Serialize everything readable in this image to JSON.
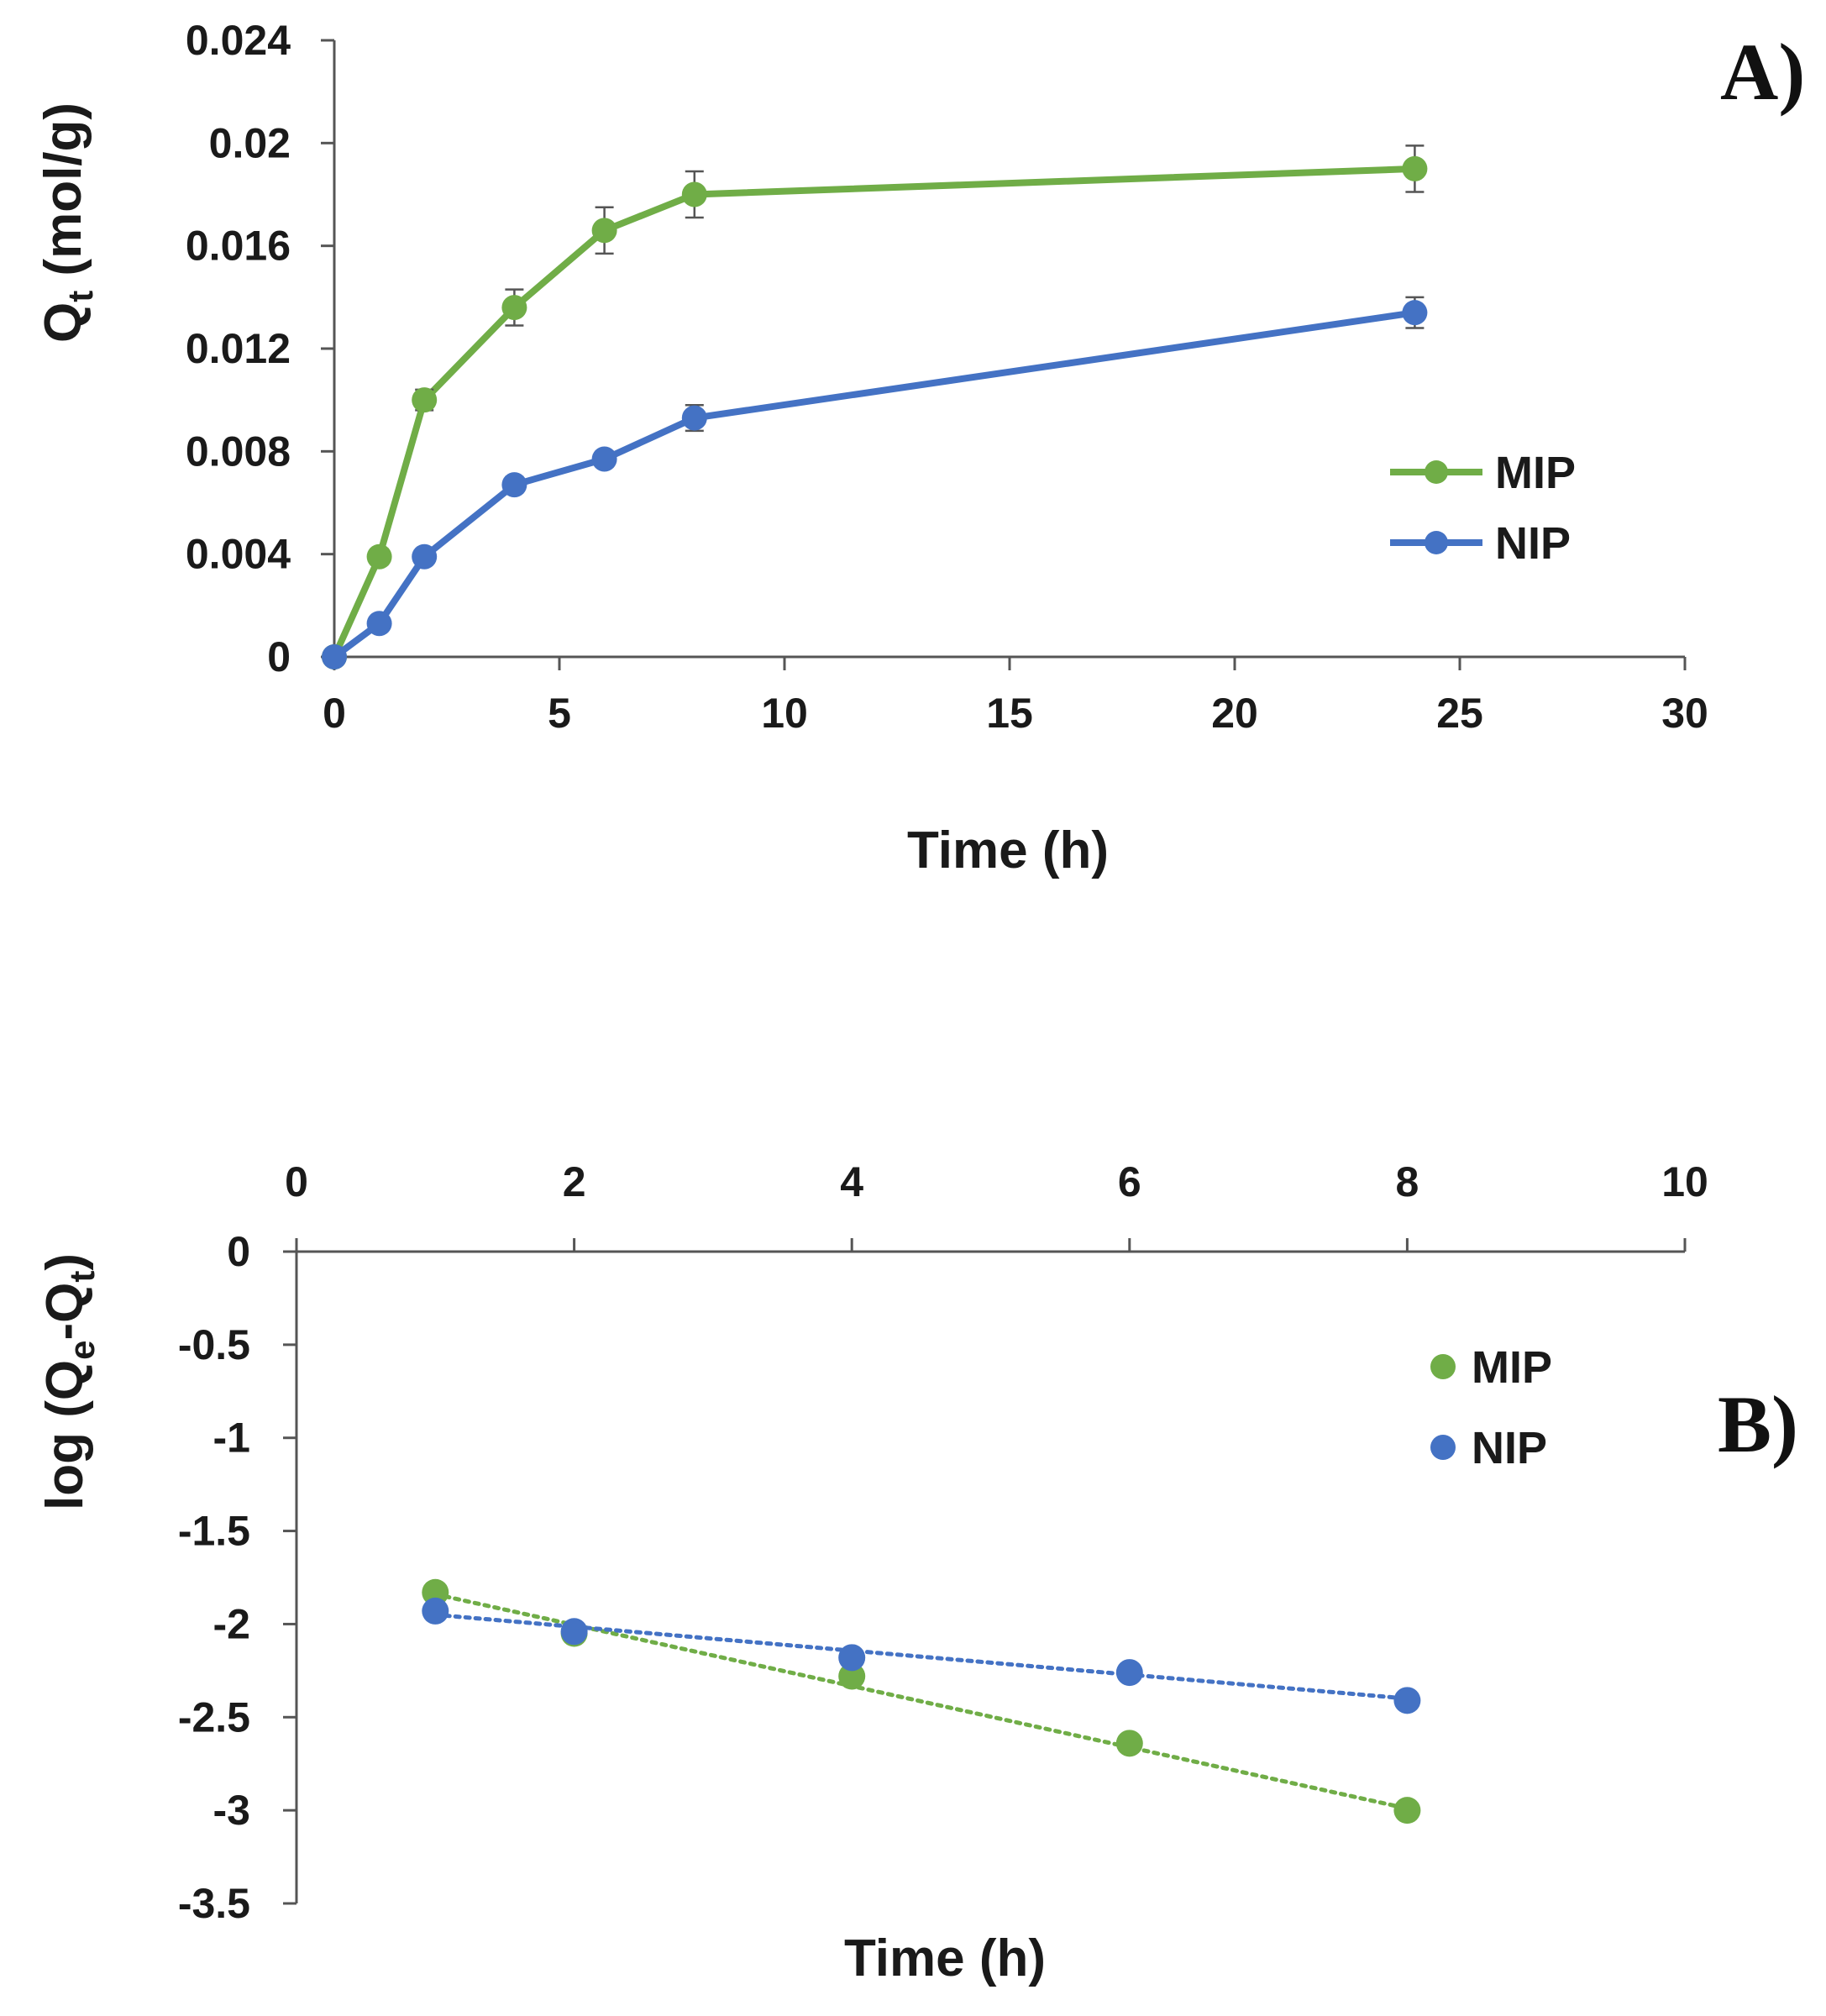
{
  "chart_data": [
    {
      "type": "line",
      "panel": "A)",
      "xlabel": "Time (h)",
      "ylabel": {
        "prefix": "Q",
        "sub": "t",
        "suffix": " (mol/g)"
      },
      "xlim": [
        0,
        30
      ],
      "ylim": [
        0,
        0.024
      ],
      "xticks": [
        "0",
        "5",
        "10",
        "15",
        "20",
        "25",
        "30"
      ],
      "yticks": [
        "0",
        "0.004",
        "0.008",
        "0.012",
        "0.016",
        "0.02",
        "0.024"
      ],
      "legend_position": "right",
      "series": [
        {
          "name": "MIP",
          "color": "#70ad47",
          "x": [
            0,
            1,
            2,
            4,
            6,
            8,
            24
          ],
          "y": [
            0,
            0.0039,
            0.01,
            0.0136,
            0.0166,
            0.018,
            0.019
          ],
          "err": [
            0,
            0.0003,
            0.0004,
            0.0007,
            0.0009,
            0.0009,
            0.0009
          ]
        },
        {
          "name": "NIP",
          "color": "#4472c4",
          "x": [
            0,
            1,
            2,
            4,
            6,
            8,
            24
          ],
          "y": [
            0,
            0.0013,
            0.0039,
            0.0067,
            0.0077,
            0.0093,
            0.0134
          ],
          "err": [
            0,
            0.0002,
            0.0002,
            0.0003,
            0.0003,
            0.0005,
            0.0006
          ]
        }
      ]
    },
    {
      "type": "scatter",
      "panel": "B)",
      "xlabel": "Time (h)",
      "ylabel": {
        "prefix": "log (Q",
        "sub1": "e",
        "mid": "-Q",
        "sub2": "t",
        "suffix": ")"
      },
      "xlim": [
        0,
        10
      ],
      "ylim": [
        -3.5,
        0
      ],
      "xticks": [
        "0",
        "2",
        "4",
        "6",
        "8",
        "10"
      ],
      "yticks": [
        "0",
        "-0.5",
        "-1",
        "-1.5",
        "-2",
        "-2.5",
        "-3",
        "-3.5"
      ],
      "x_axis_position": "top",
      "legend_position": "right",
      "trendline": "linear, dotted",
      "series": [
        {
          "name": "MIP",
          "color": "#70ad47",
          "x": [
            1,
            2,
            4,
            6,
            8
          ],
          "y": [
            -1.83,
            -2.05,
            -2.28,
            -2.64,
            -3.0
          ],
          "trend": [
            -1.84,
            -2.99
          ]
        },
        {
          "name": "NIP",
          "color": "#4472c4",
          "x": [
            1,
            2,
            4,
            6,
            8
          ],
          "y": [
            -1.93,
            -2.04,
            -2.18,
            -2.26,
            -2.41
          ],
          "trend": [
            -1.95,
            -2.4
          ]
        }
      ]
    }
  ]
}
